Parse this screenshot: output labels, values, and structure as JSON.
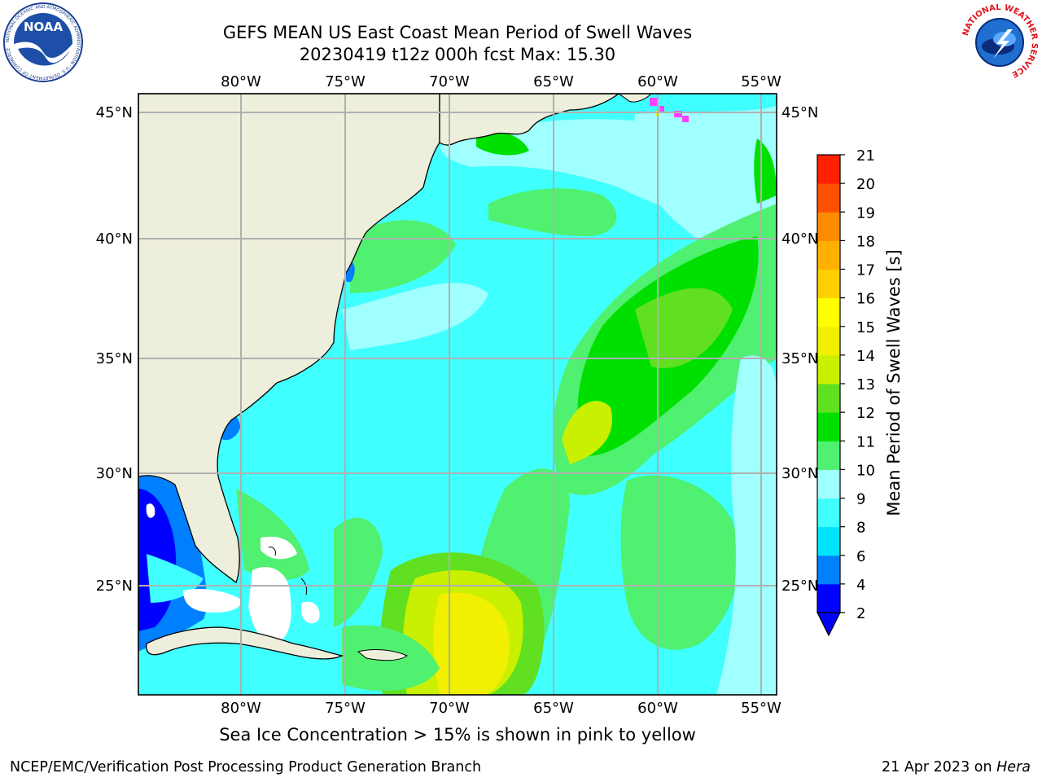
{
  "header": {
    "title_line1": "GEFS MEAN US East Coast Mean Period of Swell Waves",
    "title_line2": "20230419 t12z 000h fcst   Max: 15.30"
  },
  "logos": {
    "left": "noaa-logo",
    "left_text": "NOAA",
    "left_ring_text": "NATIONAL OCEANIC AND ATMOSPHERIC ADMINISTRATION · U.S. DEPARTMENT OF COMMERCE",
    "right": "national-weather-service-logo",
    "right_ring_text": "NATIONAL WEATHER SERVICE"
  },
  "map": {
    "lon_ticks": [
      "80°W",
      "75°W",
      "70°W",
      "65°W",
      "60°W",
      "55°W"
    ],
    "lat_ticks": [
      "45°N",
      "40°N",
      "35°N",
      "30°N",
      "25°N"
    ],
    "colors": {
      "land": "#eeeedc",
      "grid": "#b0b0b0"
    }
  },
  "colorbar": {
    "label": "Mean Period of Swell Waves [s]",
    "levels": [
      "2",
      "4",
      "6",
      "8",
      "9",
      "10",
      "11",
      "12",
      "13",
      "14",
      "15",
      "16",
      "17",
      "18",
      "19",
      "20",
      "21"
    ],
    "colors": [
      "#0000ff",
      "#0080ff",
      "#00e5ff",
      "#40ffff",
      "#a0ffff",
      "#50f070",
      "#00e000",
      "#60e020",
      "#c8f000",
      "#f0f000",
      "#ffff00",
      "#ffd000",
      "#ffb000",
      "#ff8c00",
      "#ff5000",
      "#ff2000"
    ]
  },
  "footer": {
    "note": "Sea Ice Concentration > 15% is shown in pink to yellow",
    "left": "NCEP/EMC/Verification Post Processing Product Generation Branch",
    "right_date": "21 Apr 2023 on ",
    "right_host": "Hera"
  }
}
